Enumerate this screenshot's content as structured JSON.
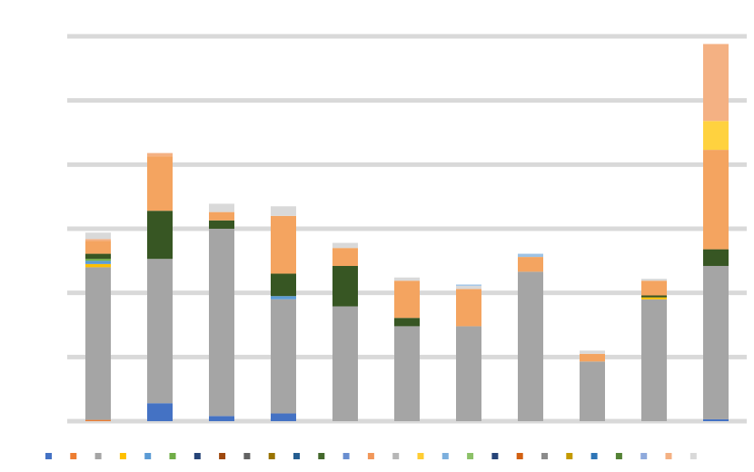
{
  "chart_data": {
    "type": "bar",
    "stacked": true,
    "title": "",
    "xlabel": "",
    "ylabel": "",
    "grid": true,
    "legend_position": "bottom",
    "categories": [
      "",
      "",
      "",
      "",
      "",
      "",
      "",
      "",
      "",
      "",
      ""
    ],
    "ylim": [
      0,
      6
    ],
    "series": [
      {
        "color": "#ED7D31",
        "values": [
          0.02,
          0,
          0,
          0,
          0,
          0,
          0,
          0,
          0,
          0,
          0
        ]
      },
      {
        "color": "#4472C4",
        "values": [
          0,
          0.28,
          0.08,
          0.12,
          0,
          0,
          0,
          0,
          0,
          0,
          0.03
        ]
      },
      {
        "color": "#A5A5A5",
        "values": [
          2.38,
          2.25,
          2.92,
          1.78,
          1.79,
          1.48,
          1.48,
          2.33,
          0.93,
          1.9,
          2.39
        ]
      },
      {
        "color": "#FFC000",
        "values": [
          0.05,
          0,
          0,
          0,
          0,
          0,
          0,
          0,
          0,
          0.03,
          0
        ]
      },
      {
        "color": "#5B9BD5",
        "values": [
          0.05,
          0,
          0,
          0.05,
          0,
          0,
          0,
          0,
          0,
          0,
          0
        ]
      },
      {
        "color": "#70AD47",
        "values": [
          0.03,
          0,
          0,
          0,
          0,
          0,
          0,
          0,
          0,
          0,
          0
        ]
      },
      {
        "color": "#375623",
        "values": [
          0.08,
          0.75,
          0.13,
          0.35,
          0.63,
          0.13,
          0,
          0,
          0,
          0.03,
          0.26
        ]
      },
      {
        "color": "#F4A460",
        "values": [
          0.2,
          0.85,
          0.13,
          0.9,
          0.28,
          0.58,
          0.58,
          0.23,
          0.12,
          0.23,
          1.55
        ]
      },
      {
        "color": "#FFD23F",
        "values": [
          0,
          0,
          0,
          0,
          0,
          0,
          0,
          0,
          0,
          0,
          0.45
        ]
      },
      {
        "color": "#F4B183",
        "values": [
          0.03,
          0.05,
          0,
          0,
          0,
          0,
          0,
          0,
          0,
          0,
          1.2
        ]
      },
      {
        "color": "#D9D9D9",
        "values": [
          0.1,
          0,
          0.13,
          0.15,
          0.08,
          0.05,
          0.05,
          0,
          0.05,
          0.03,
          0
        ]
      },
      {
        "color": "#9DC3E6",
        "values": [
          0,
          0,
          0,
          0,
          0,
          0,
          0.02,
          0.05,
          0,
          0,
          0
        ]
      }
    ],
    "legend_colors": [
      "#4472C4",
      "#ED7D31",
      "#A5A5A5",
      "#FFC000",
      "#5B9BD5",
      "#70AD47",
      "#264478",
      "#9E480E",
      "#636363",
      "#997300",
      "#255E91",
      "#43682B",
      "#698ED0",
      "#F1975A",
      "#B7B7B7",
      "#FFCD33",
      "#7CAFDD",
      "#8CC168",
      "#264478",
      "#D26012",
      "#8B8B8B",
      "#C49A00",
      "#2E75B6",
      "#548235",
      "#8FAADC",
      "#F4B183",
      "#D9D9D9"
    ]
  }
}
